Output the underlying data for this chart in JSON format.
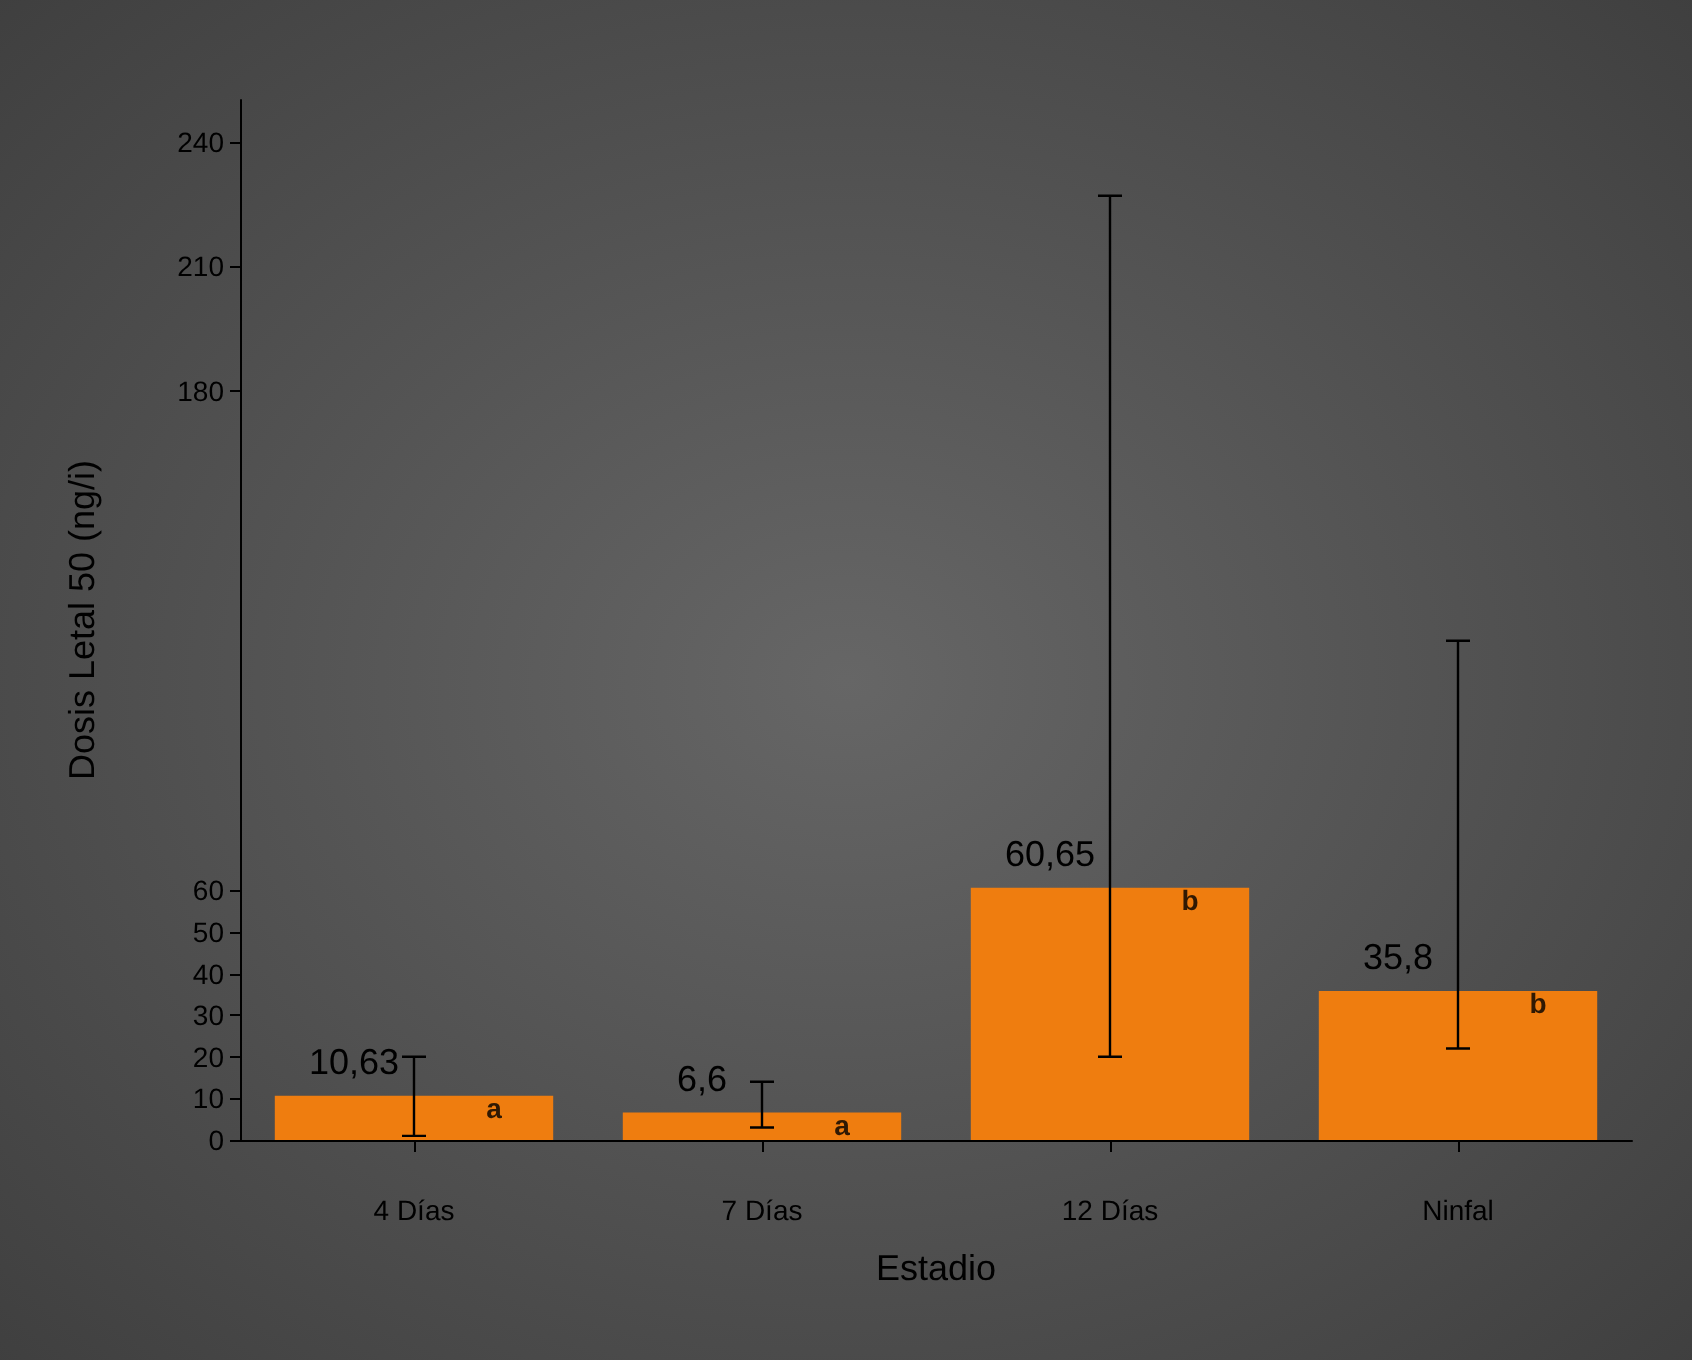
{
  "chart_data": {
    "type": "bar",
    "xlabel": "Estadio",
    "ylabel": "Dosis Letal 50 (ng/i)",
    "categories": [
      "4 Días",
      "7 Días",
      "12 Días",
      "Ninfal"
    ],
    "values": [
      10.63,
      6.6,
      60.65,
      35.8
    ],
    "color": "#ef7d0f",
    "value_labels": [
      "10,63",
      "6,6",
      "60,65",
      "35,8"
    ],
    "errors": [
      [
        1,
        20
      ],
      [
        3,
        14
      ],
      [
        20,
        227
      ],
      [
        22,
        120
      ]
    ],
    "annotations": [
      {
        "text": "a",
        "x": "4 Días",
        "y": 10.63
      },
      {
        "text": "a",
        "x": "7 Días",
        "y": 6.6
      },
      {
        "text": "b",
        "x": "12 Días",
        "y": 60.65
      },
      {
        "text": "b",
        "x": "Ninfal",
        "y": 35.8
      }
    ],
    "ylim": [
      0,
      250
    ],
    "yticks": [
      0,
      10,
      20,
      30,
      40,
      50,
      60,
      180,
      210,
      240
    ],
    "grid": false
  }
}
